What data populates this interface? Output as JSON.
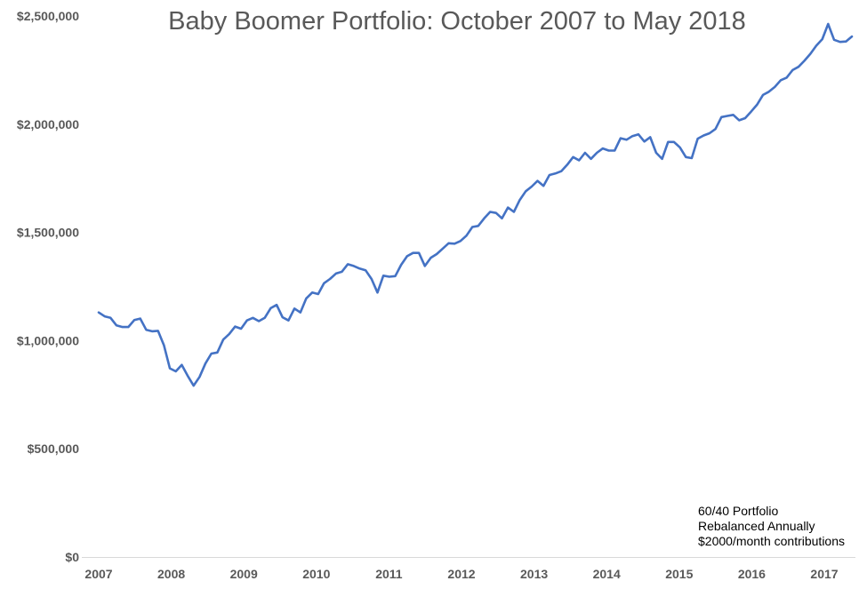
{
  "chart_data": {
    "type": "line",
    "title": "Baby Boomer Portfolio: October 2007 to May 2018",
    "xlabel": "",
    "ylabel": "",
    "x_ticks": [
      "2007",
      "2008",
      "2009",
      "2010",
      "2011",
      "2012",
      "2013",
      "2014",
      "2015",
      "2016",
      "2017"
    ],
    "y_ticks": [
      "$0",
      "$500,000",
      "$1,000,000",
      "$1,500,000",
      "$2,000,000",
      "$2,500,000"
    ],
    "ylim": [
      0,
      2500000
    ],
    "grid": false,
    "series": [
      {
        "name": "",
        "color": "#4472C4",
        "values": [
          1130000,
          1112000,
          1105000,
          1070000,
          1063000,
          1063000,
          1095000,
          1102000,
          1050000,
          1043000,
          1045000,
          978000,
          872000,
          858000,
          888000,
          838000,
          792000,
          832000,
          894000,
          940000,
          945000,
          1005000,
          1030000,
          1065000,
          1055000,
          1093000,
          1105000,
          1090000,
          1105000,
          1150000,
          1165000,
          1108000,
          1093000,
          1148000,
          1130000,
          1195000,
          1222000,
          1215000,
          1265000,
          1285000,
          1310000,
          1318000,
          1353000,
          1345000,
          1333000,
          1325000,
          1285000,
          1222000,
          1300000,
          1295000,
          1298000,
          1350000,
          1390000,
          1405000,
          1405000,
          1345000,
          1383000,
          1400000,
          1425000,
          1450000,
          1448000,
          1460000,
          1485000,
          1525000,
          1530000,
          1565000,
          1595000,
          1590000,
          1565000,
          1615000,
          1595000,
          1650000,
          1690000,
          1712000,
          1738000,
          1715000,
          1765000,
          1772000,
          1783000,
          1813000,
          1848000,
          1833000,
          1868000,
          1840000,
          1868000,
          1888000,
          1878000,
          1878000,
          1935000,
          1928000,
          1945000,
          1953000,
          1920000,
          1940000,
          1868000,
          1840000,
          1918000,
          1918000,
          1893000,
          1848000,
          1843000,
          1933000,
          1948000,
          1958000,
          1978000,
          2033000,
          2038000,
          2043000,
          2018000,
          2028000,
          2058000,
          2090000,
          2135000,
          2150000,
          2172000,
          2203000,
          2215000,
          2250000,
          2265000,
          2293000,
          2325000,
          2363000,
          2393000,
          2463000,
          2390000,
          2380000,
          2382000,
          2405000
        ]
      }
    ],
    "annotations": [
      "60/40 Portfolio",
      "Rebalanced Annually",
      "$2000/month contributions"
    ]
  }
}
